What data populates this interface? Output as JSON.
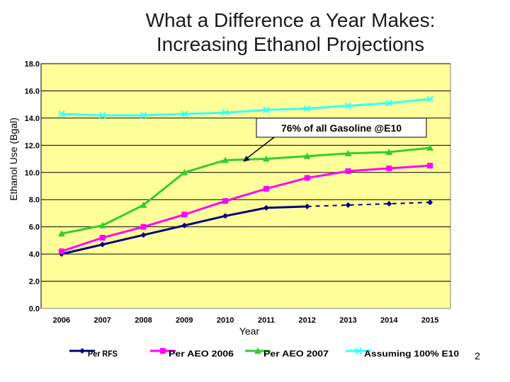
{
  "chart_data": {
    "type": "line",
    "title_lines": [
      "What a Difference a Year Makes:",
      "Increasing Ethanol Projections"
    ],
    "xlabel": "Year",
    "ylabel": "Ethanol Use (Bgal)",
    "categories": [
      "2006",
      "2007",
      "2008",
      "2009",
      "2010",
      "2011",
      "2012",
      "2013",
      "2014",
      "2015"
    ],
    "ylim": [
      0,
      18
    ],
    "yticks": [
      "0.0",
      "2.0",
      "4.0",
      "6.0",
      "8.0",
      "10.0",
      "12.0",
      "14.0",
      "16.0",
      "18.0"
    ],
    "grid": true,
    "legend_position": "bottom",
    "series": [
      {
        "name": "Per RFS",
        "values": [
          4.0,
          4.7,
          5.4,
          6.1,
          6.8,
          7.4,
          7.5,
          7.6,
          7.7,
          7.8
        ],
        "solid_until_index": 6,
        "color": "#000080",
        "marker": "diamond"
      },
      {
        "name": "Per AEO 2006",
        "values": [
          4.2,
          5.2,
          6.0,
          6.9,
          7.9,
          8.8,
          9.6,
          10.1,
          10.3,
          10.5
        ],
        "color": "#ff00ff",
        "marker": "square"
      },
      {
        "name": "Per AEO 2007",
        "values": [
          5.5,
          6.1,
          7.6,
          10.0,
          10.9,
          11.0,
          11.2,
          11.4,
          11.5,
          11.8
        ],
        "color": "#33cc33",
        "marker": "triangle"
      },
      {
        "name": "Assuming 100% E10",
        "values": [
          14.3,
          14.2,
          14.2,
          14.3,
          14.4,
          14.6,
          14.7,
          14.9,
          15.1,
          15.4
        ],
        "color": "#33ffff",
        "marker": "x"
      }
    ],
    "annotation": {
      "text": "76% of all Gasoline @E10",
      "target_category": "2010",
      "target_value": 11.3
    }
  },
  "colors": {
    "plot_background": "#ffff99",
    "gridline": "#000000"
  },
  "page_number": "2"
}
